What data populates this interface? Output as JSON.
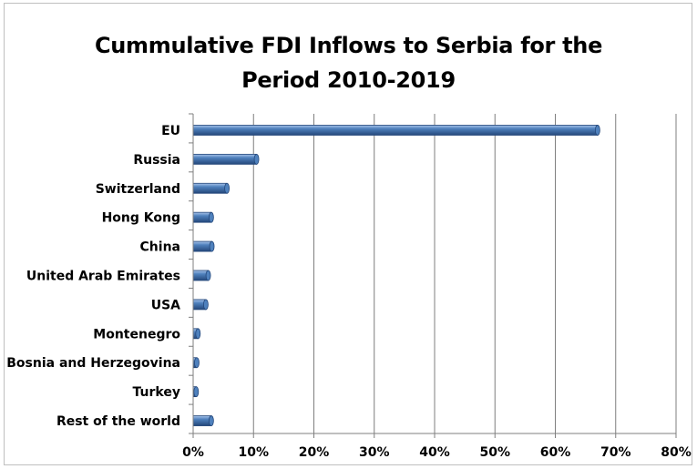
{
  "chart_data": {
    "type": "bar",
    "orientation": "horizontal",
    "title": "Cummulative FDI Inflows to Serbia for the Period 2010-2019",
    "title_lines": [
      "Cummulative FDI Inflows to Serbia for the",
      "Period 2010-2019"
    ],
    "xlabel": "",
    "ylabel": "",
    "categories": [
      "EU",
      "Russia",
      "Switzerland",
      "Hong Kong",
      "China",
      "United Arab Emirates",
      "USA",
      "Montenegro",
      "Bosnia and Herzegovina",
      "Turkey",
      "Rest of the world"
    ],
    "values": [
      67,
      10.5,
      5.6,
      3.0,
      3.1,
      2.5,
      2.1,
      0.8,
      0.6,
      0.5,
      3.0
    ],
    "xlim": [
      0,
      80
    ],
    "xticks": [
      0,
      10,
      20,
      30,
      40,
      50,
      60,
      70,
      80
    ],
    "xtick_labels": [
      "0%",
      "10%",
      "20%",
      "30%",
      "40%",
      "50%",
      "60%",
      "70%",
      "80%"
    ],
    "grid": "vertical",
    "legend": "none",
    "bar_color": "#4f81bd",
    "bar_dark_color": "#24477a",
    "bar_light_color": "#a8c4ea"
  }
}
